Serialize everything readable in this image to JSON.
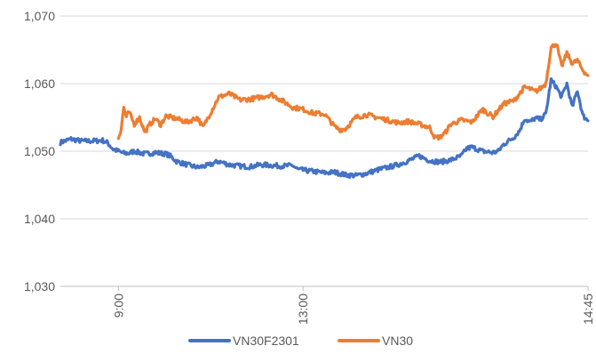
{
  "chart_data": {
    "type": "line",
    "title": "",
    "xlabel": "",
    "ylabel": "",
    "ylim": [
      1030,
      1070
    ],
    "y_ticks": [
      {
        "value": 1030,
        "label": "1,030"
      },
      {
        "value": 1040,
        "label": "1,040"
      },
      {
        "value": 1050,
        "label": "1,050"
      },
      {
        "value": 1060,
        "label": "1,060"
      },
      {
        "value": 1070,
        "label": "1,070"
      }
    ],
    "xlim": [
      0,
      100
    ],
    "x_ticks": [
      {
        "value": 11,
        "label": "9:00"
      },
      {
        "value": 46,
        "label": "13:00"
      },
      {
        "value": 100,
        "label": "14:45"
      }
    ],
    "grid": "horizontal",
    "legend_position": "bottom",
    "series": [
      {
        "name": "VN30F2301",
        "color": "#4472C4",
        "x": [
          0,
          2,
          4,
          6,
          8,
          9,
          10,
          11,
          12,
          13,
          14,
          16,
          18,
          20,
          21,
          22,
          24,
          26,
          28,
          30,
          32,
          34,
          36,
          38,
          40,
          42,
          44,
          45,
          46,
          48,
          50,
          52,
          54,
          56,
          58,
          60,
          62,
          64,
          66,
          68,
          70,
          72,
          74,
          76,
          77,
          78,
          80,
          82,
          83,
          84,
          86,
          87,
          88,
          89,
          90,
          91,
          92,
          93,
          94,
          95,
          96,
          97,
          98,
          99,
          100
        ],
        "values": [
          1051.3,
          1051.8,
          1051.5,
          1051.5,
          1051.6,
          1051.2,
          1050.3,
          1050.0,
          1049.7,
          1049.7,
          1050.0,
          1049.6,
          1049.8,
          1049.6,
          1049.2,
          1048.5,
          1048.0,
          1047.6,
          1047.9,
          1048.5,
          1048.0,
          1047.8,
          1047.7,
          1048.0,
          1047.9,
          1047.8,
          1047.9,
          1047.3,
          1047.2,
          1047.0,
          1046.8,
          1046.9,
          1046.5,
          1046.4,
          1046.7,
          1047.2,
          1047.6,
          1048.0,
          1048.6,
          1049.3,
          1048.6,
          1048.4,
          1048.7,
          1049.3,
          1050.4,
          1050.6,
          1050.0,
          1049.8,
          1050.0,
          1051.0,
          1052.1,
          1053.0,
          1054.8,
          1054.3,
          1054.9,
          1054.7,
          1055.5,
          1060.5,
          1059.5,
          1058.0,
          1060.0,
          1056.5,
          1059.0,
          1055.3,
          1054.5
        ]
      },
      {
        "name": "VN30",
        "color": "#ED7D31",
        "x": [
          11,
          11.5,
          12,
          12.5,
          13,
          14,
          15,
          16,
          17,
          18,
          19,
          20,
          22,
          24,
          26,
          27,
          28,
          30,
          32,
          34,
          36,
          38,
          40,
          42,
          44,
          46,
          48,
          50,
          51,
          52,
          53,
          54,
          56,
          58,
          60,
          62,
          64,
          66,
          68,
          70,
          71,
          72,
          73,
          74,
          76,
          78,
          80,
          82,
          84,
          86,
          88,
          89,
          90,
          91,
          92,
          93,
          94,
          95,
          96,
          97,
          98,
          99,
          100
        ],
        "values": [
          1052.0,
          1053.2,
          1056.5,
          1055.0,
          1055.8,
          1054.0,
          1055.0,
          1052.8,
          1054.0,
          1054.8,
          1053.9,
          1055.2,
          1054.8,
          1054.3,
          1055.0,
          1053.5,
          1055.0,
          1058.0,
          1058.5,
          1057.6,
          1057.7,
          1058.0,
          1058.4,
          1057.5,
          1056.5,
          1056.2,
          1055.6,
          1055.5,
          1054.6,
          1053.6,
          1053.2,
          1053.3,
          1055.0,
          1055.4,
          1055.0,
          1054.6,
          1054.2,
          1054.4,
          1054.0,
          1053.5,
          1052.0,
          1052.1,
          1052.8,
          1054.0,
          1054.6,
          1054.3,
          1056.2,
          1055.1,
          1057.0,
          1057.5,
          1059.5,
          1059.2,
          1058.8,
          1059.3,
          1060.0,
          1065.3,
          1066.0,
          1062.5,
          1064.5,
          1063.0,
          1063.4,
          1062.0,
          1061.2
        ]
      }
    ]
  }
}
